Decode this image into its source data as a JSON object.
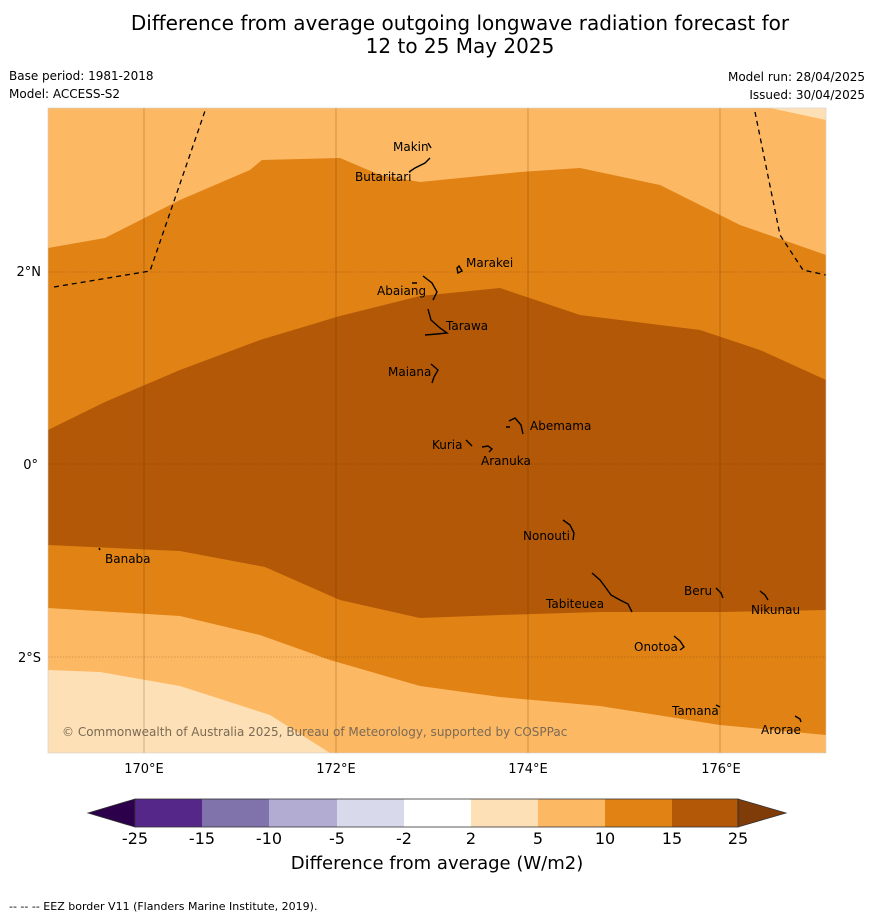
{
  "title": {
    "line1": "Difference from average outgoing longwave radiation forecast for",
    "line2": "12 to 25 May 2025"
  },
  "meta": {
    "base_period": "Base period: 1981-2018",
    "model": "Model: ACCESS-S2",
    "model_run": "Model run: 28/04/2025",
    "issued": "Issued: 30/04/2025"
  },
  "map": {
    "lon_labels": [
      "170°E",
      "172°E",
      "174°E",
      "176°E"
    ],
    "lat_labels": [
      "2°N",
      "0°",
      "2°S"
    ],
    "copyright": "© Commonwealth of Australia 2025, Bureau of Meteorology, supported by COSPPac",
    "islands": [
      "Makin",
      "Butaritari",
      "Marakei",
      "Abaiang",
      "Tarawa",
      "Maiana",
      "Abemama",
      "Kuria",
      "Aranuka",
      "Nonouti",
      "Banaba",
      "Beru",
      "Tabiteuea",
      "Nikunau",
      "Onotoa",
      "Tamana",
      "Arorae"
    ],
    "eez_line": "dashed",
    "colors": {
      "band_2_5": "#fee0b6",
      "band_5_10": "#fdb863",
      "band_10_15": "#e08214",
      "band_15_25": "#b35806"
    }
  },
  "colorbar": {
    "ticks": [
      "-25",
      "-15",
      "-10",
      "-5",
      "-2",
      "2",
      "5",
      "10",
      "15",
      "25"
    ],
    "colors": [
      "#2d004b",
      "#542788",
      "#8073ac",
      "#b2abd2",
      "#d8daeb",
      "#ffffff",
      "#fee0b6",
      "#fdb863",
      "#e08214",
      "#b35806",
      "#7f3b08"
    ],
    "label": "Difference from average (W/m2)"
  },
  "footnote": "-- -- -- EEZ border V11 (Flanders Marine Institute, 2019)."
}
